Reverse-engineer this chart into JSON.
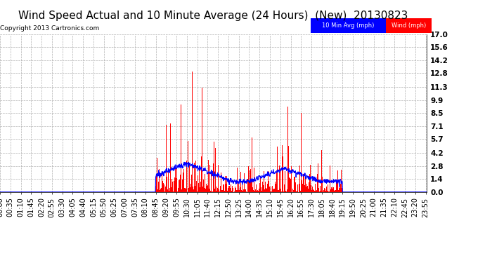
{
  "title": "Wind Speed Actual and 10 Minute Average (24 Hours)  (New)  20130823",
  "copyright": "Copyright 2013 Cartronics.com",
  "legend_labels": [
    "10 Min Avg (mph)",
    "Wind (mph)"
  ],
  "yticks": [
    0.0,
    1.4,
    2.8,
    4.2,
    5.7,
    7.1,
    8.5,
    9.9,
    11.3,
    12.8,
    14.2,
    15.6,
    17.0
  ],
  "ylim": [
    0.0,
    17.0
  ],
  "background_color": "#ffffff",
  "grid_color": "#b0b0b0",
  "bar_color": "#ff0000",
  "avg_color": "#0000ff",
  "title_fontsize": 11,
  "tick_fontsize": 7.5
}
